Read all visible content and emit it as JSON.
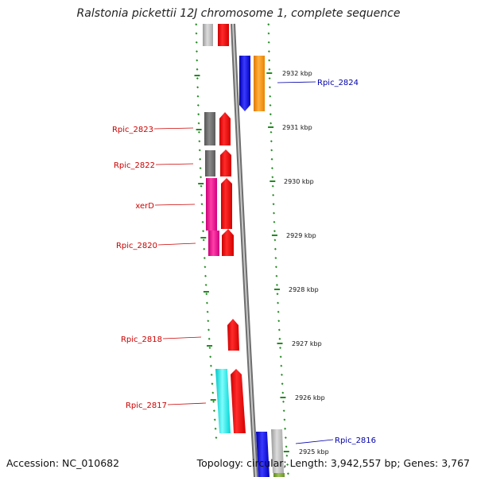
{
  "title": "Ralstonia pickettii 12J chromosome 1, complete sequence",
  "footer": {
    "accession": "Accession: NC_010682",
    "topology": "Topology: circular; Length: 3,942,557 bp; Genes: 3,767"
  },
  "colors": {
    "dna": "#888888",
    "forward_gene": "#ee0000",
    "ruler": "#228b22",
    "label_left": "#cc0000",
    "label_right": "#0000aa"
  },
  "kbp_ticks": [
    "2932 kbp",
    "2931 kbp",
    "2930 kbp",
    "2929 kbp",
    "2928 kbp",
    "2927 kbp",
    "2926 kbp",
    "2925 kbp"
  ],
  "gene_labels": {
    "left": [
      "Rpic_2823",
      "Rpic_2822",
      "xerD",
      "Rpic_2820",
      "Rpic_2818",
      "Rpic_2817"
    ],
    "right": [
      "Rpic_2824",
      "Rpic_2816"
    ]
  }
}
